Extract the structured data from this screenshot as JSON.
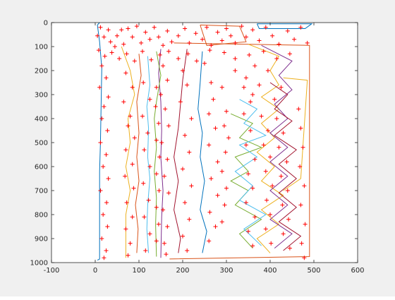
{
  "chart_data": {
    "type": "scatter",
    "title": "",
    "xlabel": "",
    "ylabel": "",
    "xlim": [
      -100,
      600
    ],
    "ylim": [
      0,
      1000
    ],
    "y_reversed": true,
    "grid": false,
    "legend": "none",
    "xticks": [
      "-100",
      "0",
      "100",
      "200",
      "300",
      "400",
      "500",
      "600"
    ],
    "yticks": [
      "0",
      "100",
      "200",
      "300",
      "400",
      "500",
      "600",
      "700",
      "800",
      "900",
      "1000"
    ],
    "xtick_values": [
      -100,
      0,
      100,
      200,
      300,
      400,
      500,
      600
    ],
    "ytick_values": [
      0,
      100,
      200,
      300,
      400,
      500,
      600,
      700,
      800,
      900,
      1000
    ],
    "colors": [
      "#0072bd",
      "#d95319",
      "#edb120",
      "#7e2f8e",
      "#77ac30",
      "#4dbeee",
      "#a2142f"
    ],
    "marker_color": "#ff0000",
    "series": [
      {
        "values": [
          [
            10,
            0
          ],
          [
            5,
            10
          ],
          [
            10,
            80
          ],
          [
            15,
            190
          ],
          [
            12,
            500
          ],
          [
            10,
            620
          ],
          [
            10,
            820
          ],
          [
            10,
            985
          ],
          [
            5,
            990
          ]
        ]
      },
      {
        "values": [
          [
            180,
            85
          ],
          [
            490,
            95
          ],
          [
            490,
            300
          ],
          [
            490,
            600
          ],
          [
            490,
            800
          ],
          [
            490,
            975
          ],
          [
            170,
            985
          ]
        ]
      },
      {
        "values": [
          [
            60,
            100
          ],
          [
            80,
            200
          ],
          [
            90,
            300
          ],
          [
            75,
            400
          ],
          [
            80,
            500
          ],
          [
            70,
            600
          ],
          [
            80,
            700
          ],
          [
            70,
            800
          ],
          [
            70,
            980
          ]
        ]
      },
      {
        "values": [
          [
            150,
            110
          ],
          [
            145,
            210
          ],
          [
            150,
            330
          ],
          [
            152,
            450
          ],
          [
            150,
            560
          ],
          [
            155,
            700
          ],
          [
            152,
            810
          ],
          [
            150,
            980
          ]
        ]
      },
      {
        "values": [
          [
            140,
            120
          ],
          [
            150,
            220
          ],
          [
            140,
            330
          ],
          [
            135,
            400
          ],
          [
            140,
            520
          ],
          [
            135,
            620
          ],
          [
            140,
            730
          ],
          [
            138,
            840
          ],
          [
            140,
            975
          ]
        ]
      },
      {
        "values": [
          [
            120,
            140
          ],
          [
            125,
            260
          ],
          [
            118,
            350
          ],
          [
            122,
            440
          ],
          [
            120,
            560
          ],
          [
            125,
            650
          ],
          [
            120,
            760
          ],
          [
            118,
            860
          ],
          [
            122,
            960
          ]
        ]
      },
      {
        "values": [
          [
            210,
            110
          ],
          [
            200,
            240
          ],
          [
            195,
            340
          ],
          [
            190,
            440
          ],
          [
            180,
            560
          ],
          [
            190,
            660
          ],
          [
            180,
            780
          ],
          [
            195,
            900
          ],
          [
            190,
            960
          ]
        ]
      },
      {
        "values": [
          [
            245,
            120
          ],
          [
            240,
            250
          ],
          [
            235,
            360
          ],
          [
            245,
            460
          ],
          [
            240,
            560
          ],
          [
            250,
            660
          ],
          [
            240,
            780
          ],
          [
            255,
            870
          ],
          [
            245,
            960
          ]
        ]
      },
      {
        "values": [
          [
            100,
            130
          ],
          [
            105,
            220
          ],
          [
            95,
            330
          ],
          [
            100,
            460
          ],
          [
            95,
            560
          ],
          [
            100,
            660
          ],
          [
            92,
            760
          ],
          [
            98,
            860
          ],
          [
            95,
            960
          ]
        ]
      },
      {
        "values": [
          [
            350,
            90
          ],
          [
            420,
            140
          ],
          [
            400,
            200
          ],
          [
            420,
            260
          ],
          [
            380,
            310
          ],
          [
            420,
            360
          ],
          [
            380,
            420
          ],
          [
            410,
            480
          ],
          [
            370,
            540
          ],
          [
            410,
            600
          ],
          [
            380,
            660
          ],
          [
            430,
            720
          ],
          [
            380,
            780
          ],
          [
            420,
            840
          ],
          [
            370,
            900
          ],
          [
            400,
            960
          ]
        ]
      },
      {
        "values": [
          [
            380,
            95
          ],
          [
            450,
            160
          ],
          [
            420,
            220
          ],
          [
            450,
            280
          ],
          [
            410,
            340
          ],
          [
            440,
            400
          ],
          [
            400,
            460
          ],
          [
            440,
            520
          ],
          [
            400,
            580
          ],
          [
            440,
            640
          ],
          [
            400,
            700
          ],
          [
            440,
            760
          ],
          [
            400,
            820
          ],
          [
            450,
            880
          ],
          [
            410,
            940
          ]
        ]
      },
      {
        "values": [
          [
            310,
            380
          ],
          [
            360,
            420
          ],
          [
            330,
            480
          ],
          [
            380,
            520
          ],
          [
            320,
            560
          ],
          [
            350,
            620
          ],
          [
            310,
            660
          ],
          [
            350,
            700
          ],
          [
            320,
            760
          ],
          [
            380,
            820
          ],
          [
            330,
            880
          ],
          [
            360,
            940
          ]
        ]
      },
      {
        "values": [
          [
            330,
            320
          ],
          [
            370,
            360
          ],
          [
            340,
            420
          ],
          [
            390,
            470
          ],
          [
            330,
            510
          ],
          [
            370,
            560
          ],
          [
            320,
            620
          ],
          [
            360,
            680
          ],
          [
            330,
            740
          ],
          [
            390,
            800
          ],
          [
            340,
            860
          ],
          [
            380,
            930
          ]
        ]
      },
      {
        "values": [
          [
            400,
            250
          ],
          [
            440,
            300
          ],
          [
            410,
            360
          ],
          [
            450,
            410
          ],
          [
            410,
            470
          ],
          [
            460,
            530
          ],
          [
            420,
            590
          ],
          [
            460,
            650
          ],
          [
            420,
            710
          ],
          [
            460,
            770
          ],
          [
            420,
            830
          ],
          [
            470,
            890
          ],
          [
            430,
            950
          ]
        ]
      },
      {
        "values": [
          [
            370,
            5
          ],
          [
            495,
            5
          ],
          [
            480,
            25
          ],
          [
            375,
            25
          ],
          [
            370,
            5
          ]
        ]
      },
      {
        "values": [
          [
            240,
            10
          ],
          [
            330,
            15
          ],
          [
            345,
            80
          ],
          [
            255,
            95
          ],
          [
            240,
            10
          ]
        ]
      },
      {
        "values": [
          [
            430,
            230
          ],
          [
            485,
            240
          ],
          [
            470,
            650
          ],
          [
            430,
            700
          ]
        ]
      }
    ],
    "points": [
      [
        5,
        55
      ],
      [
        12,
        20
      ],
      [
        20,
        60
      ],
      [
        30,
        30
      ],
      [
        35,
        80
      ],
      [
        45,
        100
      ],
      [
        50,
        55
      ],
      [
        60,
        30
      ],
      [
        65,
        90
      ],
      [
        75,
        25
      ],
      [
        85,
        60
      ],
      [
        95,
        15
      ],
      [
        105,
        85
      ],
      [
        115,
        40
      ],
      [
        125,
        70
      ],
      [
        135,
        20
      ],
      [
        145,
        60
      ],
      [
        155,
        95
      ],
      [
        165,
        35
      ],
      [
        175,
        80
      ],
      [
        190,
        55
      ],
      [
        205,
        25
      ],
      [
        215,
        85
      ],
      [
        230,
        45
      ],
      [
        245,
        70
      ],
      [
        255,
        20
      ],
      [
        265,
        95
      ],
      [
        280,
        40
      ],
      [
        290,
        75
      ],
      [
        300,
        25
      ],
      [
        310,
        55
      ],
      [
        320,
        85
      ],
      [
        335,
        15
      ],
      [
        345,
        60
      ],
      [
        360,
        30
      ],
      [
        375,
        75
      ],
      [
        390,
        20
      ],
      [
        405,
        55
      ],
      [
        420,
        90
      ],
      [
        440,
        35
      ],
      [
        455,
        70
      ],
      [
        470,
        20
      ],
      [
        485,
        85
      ],
      [
        8,
        115
      ],
      [
        22,
        140
      ],
      [
        38,
        125
      ],
      [
        55,
        150
      ],
      [
        72,
        130
      ],
      [
        90,
        160
      ],
      [
        108,
        120
      ],
      [
        128,
        155
      ],
      [
        148,
        135
      ],
      [
        168,
        120
      ],
      [
        190,
        150
      ],
      [
        212,
        130
      ],
      [
        232,
        160
      ],
      [
        262,
        115
      ],
      [
        295,
        125
      ],
      [
        320,
        150
      ],
      [
        352,
        135
      ],
      [
        385,
        120
      ],
      [
        415,
        150
      ],
      [
        445,
        130
      ],
      [
        15,
        180
      ],
      [
        25,
        230
      ],
      [
        10,
        270
      ],
      [
        30,
        310
      ],
      [
        20,
        350
      ],
      [
        15,
        400
      ],
      [
        28,
        450
      ],
      [
        12,
        500
      ],
      [
        25,
        550
      ],
      [
        18,
        600
      ],
      [
        30,
        650
      ],
      [
        12,
        700
      ],
      [
        26,
        750
      ],
      [
        18,
        800
      ],
      [
        28,
        850
      ],
      [
        15,
        900
      ],
      [
        25,
        950
      ],
      [
        20,
        980
      ],
      [
        70,
        210
      ],
      [
        85,
        270
      ],
      [
        65,
        330
      ],
      [
        80,
        390
      ],
      [
        75,
        430
      ],
      [
        90,
        480
      ],
      [
        70,
        530
      ],
      [
        85,
        590
      ],
      [
        68,
        640
      ],
      [
        88,
        690
      ],
      [
        72,
        750
      ],
      [
        85,
        810
      ],
      [
        70,
        860
      ],
      [
        80,
        920
      ],
      [
        75,
        970
      ],
      [
        155,
        180
      ],
      [
        165,
        240
      ],
      [
        150,
        300
      ],
      [
        160,
        360
      ],
      [
        168,
        430
      ],
      [
        152,
        500
      ],
      [
        165,
        570
      ],
      [
        158,
        640
      ],
      [
        168,
        710
      ],
      [
        155,
        780
      ],
      [
        165,
        850
      ],
      [
        158,
        920
      ],
      [
        162,
        965
      ],
      [
        200,
        200
      ],
      [
        210,
        260
      ],
      [
        195,
        330
      ],
      [
        220,
        400
      ],
      [
        205,
        470
      ],
      [
        215,
        540
      ],
      [
        200,
        610
      ],
      [
        220,
        680
      ],
      [
        205,
        750
      ],
      [
        215,
        820
      ],
      [
        200,
        890
      ],
      [
        210,
        950
      ],
      [
        250,
        170
      ],
      [
        265,
        250
      ],
      [
        270,
        320
      ],
      [
        260,
        380
      ],
      [
        275,
        440
      ],
      [
        260,
        510
      ],
      [
        280,
        580
      ],
      [
        265,
        650
      ],
      [
        280,
        720
      ],
      [
        262,
        790
      ],
      [
        275,
        850
      ],
      [
        260,
        910
      ],
      [
        290,
        270
      ],
      [
        300,
        370
      ],
      [
        295,
        430
      ],
      [
        305,
        480
      ],
      [
        298,
        540
      ],
      [
        290,
        620
      ],
      [
        300,
        690
      ],
      [
        296,
        760
      ],
      [
        290,
        830
      ],
      [
        320,
        200
      ],
      [
        340,
        270
      ],
      [
        355,
        330
      ],
      [
        365,
        180
      ],
      [
        345,
        230
      ],
      [
        360,
        300
      ],
      [
        375,
        260
      ],
      [
        395,
        200
      ],
      [
        410,
        320
      ],
      [
        425,
        270
      ],
      [
        340,
        380
      ],
      [
        355,
        450
      ],
      [
        345,
        510
      ],
      [
        365,
        570
      ],
      [
        350,
        630
      ],
      [
        360,
        690
      ],
      [
        345,
        750
      ],
      [
        365,
        810
      ],
      [
        350,
        870
      ],
      [
        360,
        930
      ],
      [
        380,
        390
      ],
      [
        395,
        450
      ],
      [
        385,
        510
      ],
      [
        400,
        560
      ],
      [
        390,
        620
      ],
      [
        405,
        680
      ],
      [
        392,
        740
      ],
      [
        400,
        800
      ],
      [
        390,
        860
      ],
      [
        402,
        920
      ],
      [
        415,
        400
      ],
      [
        430,
        460
      ],
      [
        420,
        520
      ],
      [
        438,
        580
      ],
      [
        425,
        640
      ],
      [
        440,
        700
      ],
      [
        428,
        760
      ],
      [
        442,
        820
      ],
      [
        430,
        880
      ],
      [
        445,
        940
      ],
      [
        465,
        360
      ],
      [
        470,
        440
      ],
      [
        475,
        520
      ],
      [
        468,
        600
      ],
      [
        478,
        680
      ],
      [
        470,
        760
      ],
      [
        480,
        840
      ],
      [
        472,
        920
      ],
      [
        478,
        980
      ],
      [
        110,
        250
      ],
      [
        125,
        320
      ],
      [
        108,
        390
      ],
      [
        120,
        460
      ],
      [
        112,
        530
      ],
      [
        125,
        600
      ],
      [
        110,
        670
      ],
      [
        122,
        740
      ],
      [
        112,
        810
      ],
      [
        125,
        880
      ],
      [
        115,
        950
      ],
      [
        140,
        270
      ],
      [
        138,
        350
      ],
      [
        145,
        420
      ],
      [
        140,
        490
      ],
      [
        147,
        560
      ],
      [
        140,
        630
      ],
      [
        146,
        700
      ],
      [
        140,
        770
      ],
      [
        145,
        840
      ],
      [
        140,
        910
      ]
    ]
  }
}
